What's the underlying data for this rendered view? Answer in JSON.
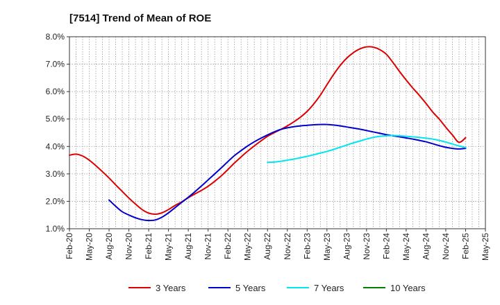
{
  "chart_data": {
    "type": "line",
    "title": "[7514]  Trend of Mean of ROE",
    "xlabel": "",
    "ylabel": "",
    "ylim": [
      1.0,
      8.0
    ],
    "y_ticks": [
      "1.0%",
      "2.0%",
      "3.0%",
      "4.0%",
      "5.0%",
      "6.0%",
      "7.0%",
      "8.0%"
    ],
    "y_tick_values": [
      1.0,
      2.0,
      3.0,
      4.0,
      5.0,
      6.0,
      7.0,
      8.0
    ],
    "x_ticks": [
      "Feb-20",
      "May-20",
      "Aug-20",
      "Nov-20",
      "Feb-21",
      "May-21",
      "Aug-21",
      "Nov-21",
      "Feb-22",
      "May-22",
      "Aug-22",
      "Nov-22",
      "Feb-23",
      "May-23",
      "Aug-23",
      "Nov-23",
      "Feb-24",
      "May-24",
      "Aug-24",
      "Nov-24",
      "Feb-25",
      "May-25"
    ],
    "x_range_months": [
      0,
      63
    ],
    "grid": true,
    "legend_position": "bottom",
    "series": [
      {
        "name": "3 Years",
        "color": "#dd0000",
        "x_months": [
          0,
          1,
          2,
          3,
          4,
          5,
          6,
          7,
          8,
          9,
          10,
          11,
          12,
          13,
          14,
          15,
          16,
          17,
          18,
          19,
          20,
          21,
          22,
          23,
          24,
          25,
          26,
          27,
          28,
          29,
          30,
          31,
          32,
          33,
          34,
          35,
          36,
          37,
          38,
          39,
          40,
          41,
          42,
          43,
          44,
          45,
          46,
          47,
          48,
          49,
          50,
          51,
          52,
          53,
          54,
          55,
          56,
          57,
          58,
          59,
          60
        ],
        "values": [
          3.68,
          3.72,
          3.65,
          3.5,
          3.3,
          3.08,
          2.85,
          2.6,
          2.36,
          2.12,
          1.9,
          1.7,
          1.57,
          1.53,
          1.58,
          1.7,
          1.85,
          1.98,
          2.13,
          2.27,
          2.4,
          2.55,
          2.73,
          2.93,
          3.16,
          3.4,
          3.62,
          3.83,
          4.02,
          4.2,
          4.37,
          4.5,
          4.62,
          4.75,
          4.9,
          5.07,
          5.28,
          5.55,
          5.87,
          6.25,
          6.62,
          6.95,
          7.22,
          7.42,
          7.56,
          7.63,
          7.62,
          7.53,
          7.36,
          7.06,
          6.73,
          6.42,
          6.13,
          5.86,
          5.57,
          5.26,
          5.0,
          4.7,
          4.42,
          4.15,
          4.32
        ]
      },
      {
        "name": "5 Years",
        "color": "#0000cc",
        "x_months": [
          6,
          7,
          8,
          9,
          10,
          11,
          12,
          13,
          14,
          15,
          16,
          17,
          18,
          19,
          20,
          21,
          22,
          23,
          24,
          25,
          26,
          27,
          28,
          29,
          30,
          31,
          32,
          33,
          34,
          35,
          36,
          37,
          38,
          39,
          40,
          41,
          42,
          43,
          44,
          45,
          46,
          47,
          48,
          49,
          50,
          51,
          52,
          53,
          54,
          55,
          56,
          57,
          58,
          59,
          60
        ],
        "values": [
          2.05,
          1.82,
          1.62,
          1.5,
          1.4,
          1.33,
          1.3,
          1.32,
          1.42,
          1.58,
          1.77,
          1.96,
          2.15,
          2.35,
          2.56,
          2.78,
          3.0,
          3.22,
          3.45,
          3.67,
          3.85,
          4.02,
          4.17,
          4.3,
          4.42,
          4.53,
          4.62,
          4.68,
          4.72,
          4.75,
          4.77,
          4.79,
          4.8,
          4.8,
          4.78,
          4.75,
          4.71,
          4.67,
          4.63,
          4.58,
          4.53,
          4.48,
          4.43,
          4.39,
          4.35,
          4.31,
          4.27,
          4.22,
          4.17,
          4.1,
          4.03,
          3.97,
          3.93,
          3.91,
          3.93
        ]
      },
      {
        "name": "7 Years",
        "color": "#00e5ee",
        "x_months": [
          30,
          31,
          32,
          33,
          34,
          35,
          36,
          37,
          38,
          39,
          40,
          41,
          42,
          43,
          44,
          45,
          46,
          47,
          48,
          49,
          50,
          51,
          52,
          53,
          54,
          55,
          56,
          57,
          58,
          59,
          60
        ],
        "values": [
          3.42,
          3.43,
          3.46,
          3.5,
          3.54,
          3.59,
          3.64,
          3.7,
          3.76,
          3.82,
          3.89,
          3.97,
          4.05,
          4.13,
          4.2,
          4.27,
          4.33,
          4.37,
          4.39,
          4.4,
          4.39,
          4.37,
          4.35,
          4.33,
          4.3,
          4.27,
          4.22,
          4.16,
          4.09,
          4.02,
          3.96
        ]
      },
      {
        "name": "10 Years",
        "color": "#008000",
        "x_months": [],
        "values": []
      }
    ]
  }
}
